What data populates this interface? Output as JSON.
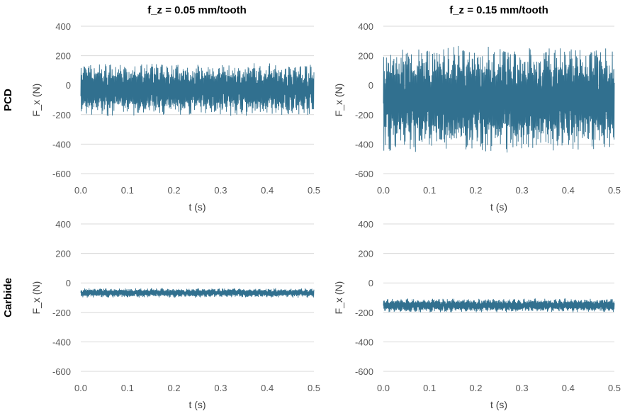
{
  "column_titles": [
    "f_z = 0.05 mm/tooth",
    "f_z = 0.15 mm/tooth"
  ],
  "row_labels": [
    "PCD",
    "Carbide"
  ],
  "chart_data": [
    {
      "type": "line",
      "row": "PCD",
      "column": "f_z = 0.05 mm/tooth",
      "xlabel": "t (s)",
      "ylabel": "F_x (N)",
      "xlim": [
        0,
        0.5
      ],
      "ylim": [
        -600,
        400
      ],
      "xticks": [
        "0.0",
        "0.1",
        "0.2",
        "0.3",
        "0.4",
        "0.5"
      ],
      "yticks": [
        "400",
        "200",
        "0",
        "-200",
        "-400",
        "-600"
      ],
      "grid": "horizontal",
      "signal": {
        "upper": 150,
        "lower": -210
      },
      "color": "#31708f"
    },
    {
      "type": "line",
      "row": "PCD",
      "column": "f_z = 0.15 mm/tooth",
      "xlabel": "t (s)",
      "ylabel": "F_x (N)",
      "xlim": [
        0,
        0.5
      ],
      "ylim": [
        -600,
        400
      ],
      "xticks": [
        "0.0",
        "0.1",
        "0.2",
        "0.3",
        "0.4",
        "0.5"
      ],
      "yticks": [
        "400",
        "200",
        "0",
        "-200",
        "-400",
        "-600"
      ],
      "grid": "horizontal",
      "signal": {
        "upper": 270,
        "lower": -460
      },
      "color": "#31708f"
    },
    {
      "type": "line",
      "row": "Carbide",
      "column": "f_z = 0.05 mm/tooth",
      "xlabel": "t (s)",
      "ylabel": "F_x (N)",
      "xlim": [
        0,
        0.5
      ],
      "ylim": [
        -600,
        400
      ],
      "xticks": [
        "0.0",
        "0.1",
        "0.2",
        "0.3",
        "0.4",
        "0.5"
      ],
      "yticks": [
        "400",
        "200",
        "0",
        "-200",
        "-400",
        "-600"
      ],
      "grid": "horizontal",
      "signal": {
        "upper": -35,
        "lower": -100
      },
      "color": "#31708f"
    },
    {
      "type": "line",
      "row": "Carbide",
      "column": "f_z = 0.15 mm/tooth",
      "xlabel": "t (s)",
      "ylabel": "F_x (N)",
      "xlim": [
        0,
        0.5
      ],
      "ylim": [
        -600,
        400
      ],
      "xticks": [
        "0.0",
        "0.1",
        "0.2",
        "0.3",
        "0.4",
        "0.5"
      ],
      "yticks": [
        "400",
        "200",
        "0",
        "-200",
        "-400",
        "-600"
      ],
      "grid": "horizontal",
      "signal": {
        "upper": -105,
        "lower": -200
      },
      "color": "#31708f"
    }
  ]
}
